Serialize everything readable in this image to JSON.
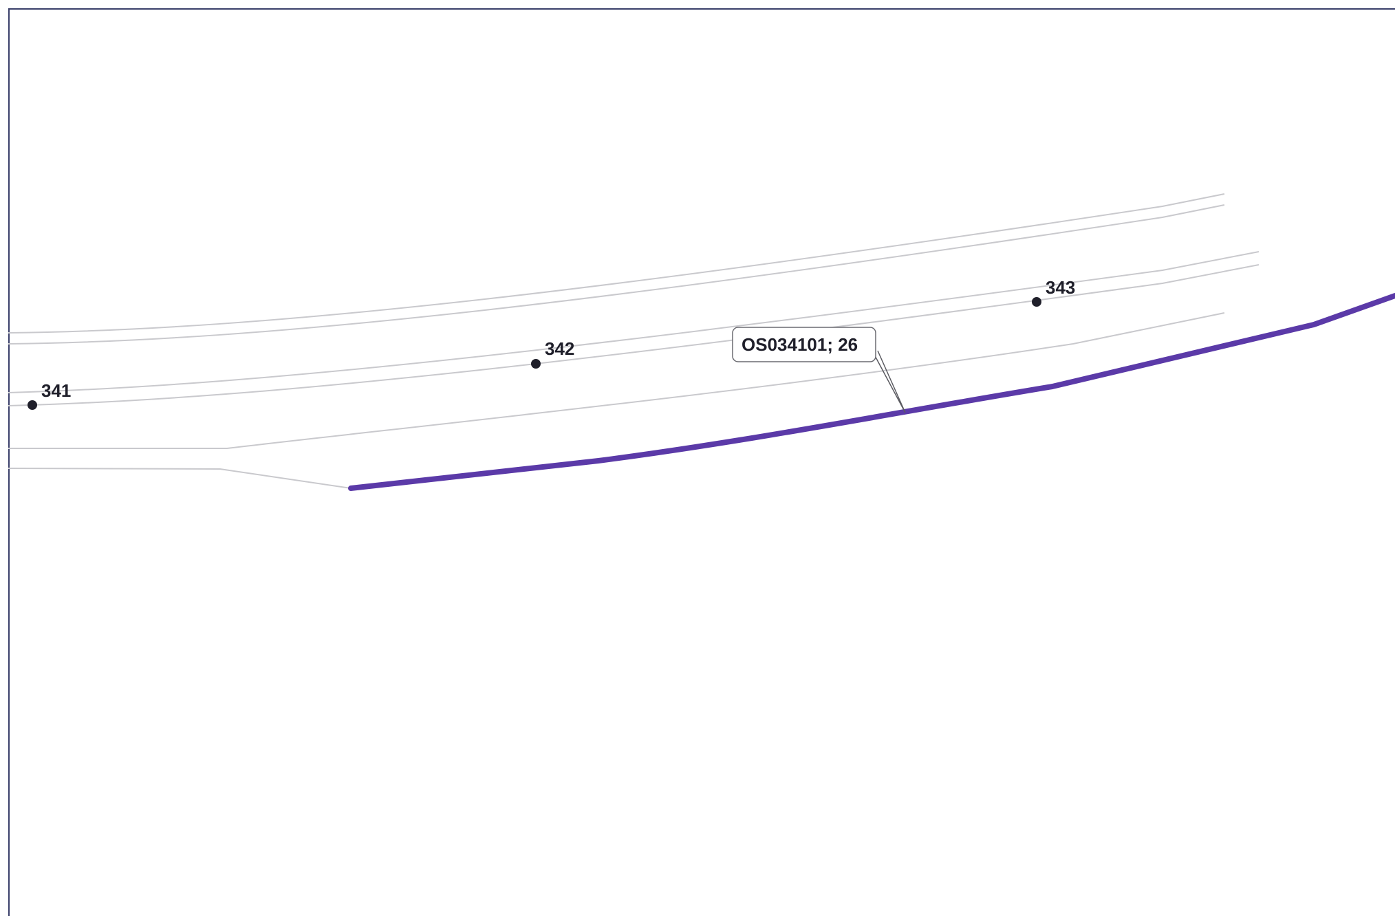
{
  "map": {
    "colors": {
      "boundary_line": "#5b3aa8",
      "road_lines": "#c4c4c8",
      "frame": "#3a3f6a",
      "point": "#1f1f2a"
    },
    "points": [
      {
        "id": "341",
        "label": "341"
      },
      {
        "id": "342",
        "label": "342"
      },
      {
        "id": "343",
        "label": "343"
      }
    ],
    "callout": {
      "label": "OS034101; 26"
    }
  }
}
